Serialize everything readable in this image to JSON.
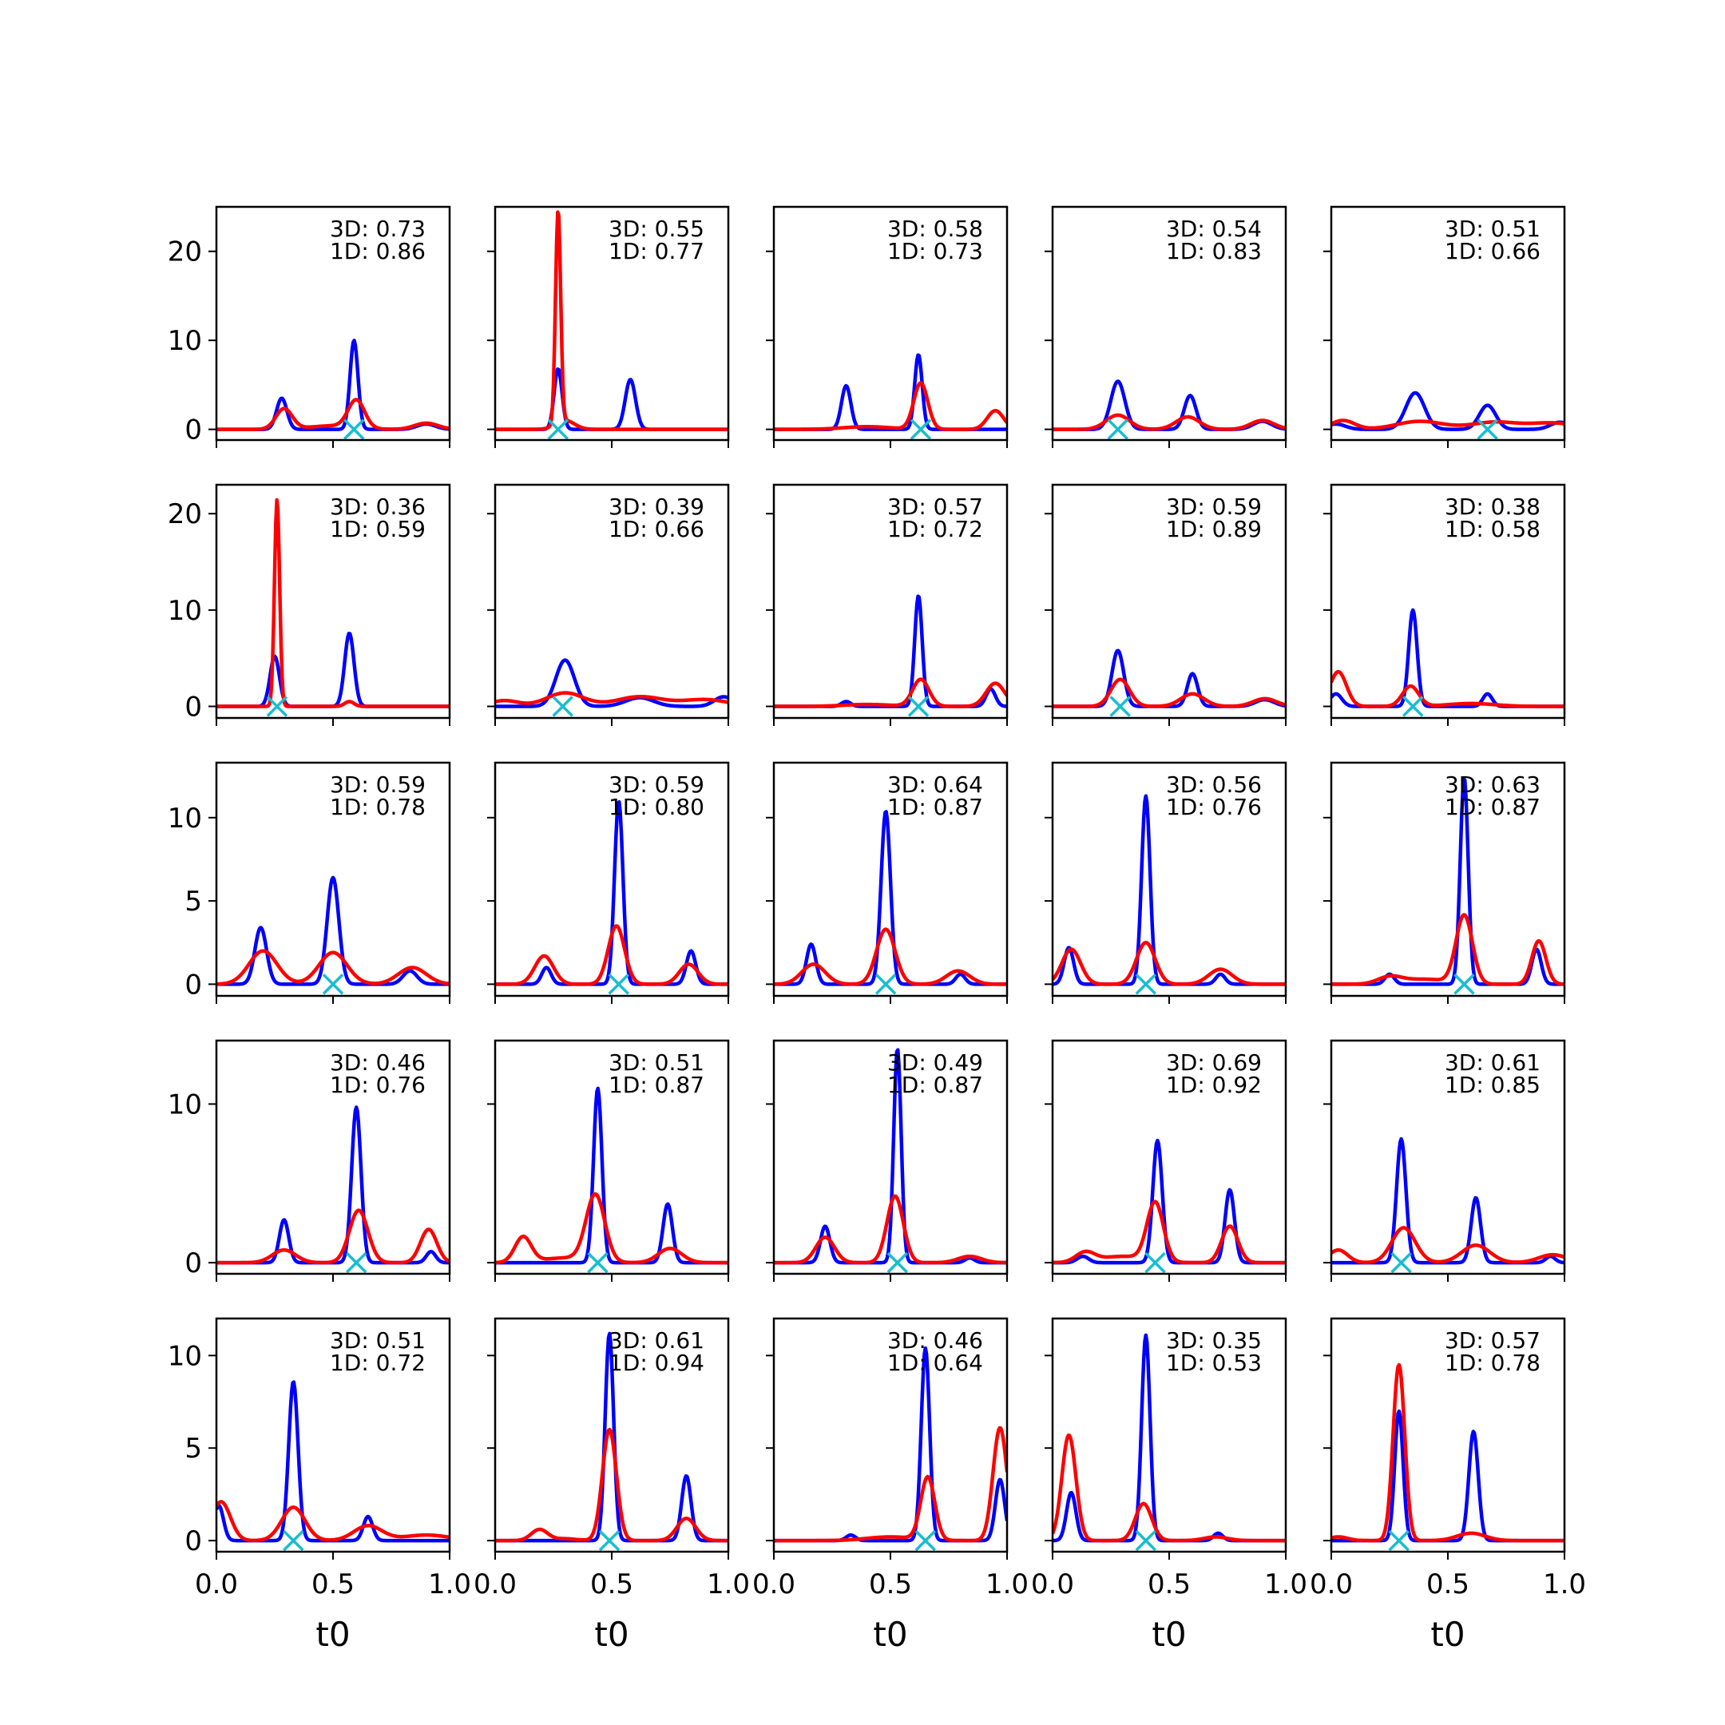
{
  "chart_data": {
    "type": "line",
    "layout": "5x5 grid of small multiples",
    "xlabel": "t0",
    "xlim": [
      0,
      1
    ],
    "xticks": [
      "0.0",
      "0.5",
      "1.0"
    ],
    "rows": [
      {
        "ylim": [
          -1.2,
          25
        ],
        "yticks": [
          0,
          10,
          20
        ]
      },
      {
        "ylim": [
          -1.2,
          23
        ],
        "yticks": [
          0,
          10,
          20
        ]
      },
      {
        "ylim": [
          -0.7,
          13.3
        ],
        "yticks": [
          0,
          5,
          10
        ]
      },
      {
        "ylim": [
          -0.7,
          14
        ],
        "yticks": [
          0,
          10
        ]
      },
      {
        "ylim": [
          -0.6,
          12
        ],
        "yticks": [
          0,
          5,
          10
        ]
      }
    ],
    "series_colors": {
      "blue": "#0000ff",
      "red": "#ff0000",
      "marker": "#17becf"
    },
    "panels": [
      {
        "ann": [
          "3D: 0.73",
          "1D: 0.86"
        ],
        "x_mark": 0.59,
        "blue": [
          [
            0.28,
            3.5,
            0.022
          ],
          [
            0.59,
            10.0,
            0.017
          ],
          [
            0.9,
            0.6,
            0.04
          ]
        ],
        "red": [
          [
            0.29,
            2.3,
            0.035
          ],
          [
            0.6,
            3.1,
            0.035
          ],
          [
            0.9,
            0.7,
            0.05
          ],
          [
            0.5,
            0.4,
            0.1
          ]
        ]
      },
      {
        "ann": [
          "3D: 0.55",
          "1D: 0.77"
        ],
        "x_mark": 0.27,
        "blue": [
          [
            0.27,
            6.8,
            0.017
          ],
          [
            0.58,
            5.6,
            0.022
          ]
        ],
        "red": [
          [
            0.27,
            24.0,
            0.011
          ],
          [
            0.3,
            1.0,
            0.04
          ]
        ]
      },
      {
        "ann": [
          "3D: 0.58",
          "1D: 0.73"
        ],
        "x_mark": 0.63,
        "blue": [
          [
            0.31,
            4.9,
            0.02
          ],
          [
            0.62,
            8.4,
            0.016
          ]
        ],
        "red": [
          [
            0.63,
            5.2,
            0.03
          ],
          [
            0.95,
            2.1,
            0.035
          ],
          [
            0.4,
            0.3,
            0.1
          ]
        ]
      },
      {
        "ann": [
          "3D: 0.54",
          "1D: 0.83"
        ],
        "x_mark": 0.28,
        "blue": [
          [
            0.28,
            5.4,
            0.03
          ],
          [
            0.59,
            3.8,
            0.025
          ],
          [
            0.9,
            0.9,
            0.04
          ]
        ],
        "red": [
          [
            0.28,
            1.6,
            0.05
          ],
          [
            0.58,
            1.4,
            0.05
          ],
          [
            0.9,
            1.0,
            0.05
          ]
        ]
      },
      {
        "ann": [
          "3D: 0.51",
          "1D: 0.66"
        ],
        "x_mark": 0.67,
        "blue": [
          [
            0.36,
            4.1,
            0.04
          ],
          [
            0.67,
            2.7,
            0.035
          ],
          [
            0.98,
            0.8,
            0.04
          ],
          [
            0.02,
            0.6,
            0.04
          ]
        ],
        "red": [
          [
            0.05,
            1.0,
            0.05
          ],
          [
            0.38,
            0.9,
            0.1
          ],
          [
            0.7,
            0.8,
            0.1
          ],
          [
            0.95,
            0.7,
            0.1
          ]
        ]
      },
      {
        "ann": [
          "3D: 0.36",
          "1D: 0.59"
        ],
        "x_mark": 0.26,
        "blue": [
          [
            0.25,
            5.2,
            0.02
          ],
          [
            0.57,
            7.6,
            0.02
          ]
        ],
        "red": [
          [
            0.26,
            21.5,
            0.011
          ],
          [
            0.57,
            0.5,
            0.02
          ]
        ]
      },
      {
        "ann": [
          "3D: 0.39",
          "1D: 0.66"
        ],
        "x_mark": 0.29,
        "blue": [
          [
            0.3,
            4.8,
            0.04
          ],
          [
            0.62,
            0.9,
            0.06
          ],
          [
            0.98,
            1.0,
            0.04
          ]
        ],
        "red": [
          [
            0.04,
            0.6,
            0.06
          ],
          [
            0.3,
            1.4,
            0.08
          ],
          [
            0.62,
            1.0,
            0.1
          ],
          [
            0.9,
            0.7,
            0.1
          ]
        ]
      },
      {
        "ann": [
          "3D: 0.57",
          "1D: 0.72"
        ],
        "x_mark": 0.62,
        "blue": [
          [
            0.31,
            0.5,
            0.02
          ],
          [
            0.62,
            11.5,
            0.016
          ],
          [
            0.93,
            1.8,
            0.02
          ]
        ],
        "red": [
          [
            0.63,
            2.8,
            0.035
          ],
          [
            0.95,
            2.4,
            0.04
          ],
          [
            0.4,
            0.2,
            0.1
          ]
        ]
      },
      {
        "ann": [
          "3D: 0.59",
          "1D: 0.89"
        ],
        "x_mark": 0.29,
        "blue": [
          [
            0.28,
            5.8,
            0.025
          ],
          [
            0.6,
            3.4,
            0.022
          ],
          [
            0.91,
            0.7,
            0.04
          ]
        ],
        "red": [
          [
            0.29,
            2.8,
            0.04
          ],
          [
            0.6,
            1.3,
            0.05
          ],
          [
            0.91,
            0.8,
            0.05
          ]
        ]
      },
      {
        "ann": [
          "3D: 0.38",
          "1D: 0.58"
        ],
        "x_mark": 0.35,
        "blue": [
          [
            0.02,
            1.3,
            0.025
          ],
          [
            0.35,
            10.0,
            0.018
          ],
          [
            0.67,
            1.3,
            0.02
          ]
        ],
        "red": [
          [
            0.03,
            3.6,
            0.035
          ],
          [
            0.34,
            2.1,
            0.035
          ],
          [
            0.6,
            0.3,
            0.1
          ]
        ]
      },
      {
        "ann": [
          "3D: 0.59",
          "1D: 0.78"
        ],
        "x_mark": 0.5,
        "blue": [
          [
            0.19,
            3.4,
            0.025
          ],
          [
            0.5,
            6.4,
            0.025
          ],
          [
            0.83,
            0.8,
            0.03
          ]
        ],
        "red": [
          [
            0.2,
            2.0,
            0.06
          ],
          [
            0.5,
            1.9,
            0.06
          ],
          [
            0.84,
            1.0,
            0.06
          ]
        ]
      },
      {
        "ann": [
          "3D: 0.59",
          "1D: 0.80"
        ],
        "x_mark": 0.53,
        "blue": [
          [
            0.22,
            1.0,
            0.02
          ],
          [
            0.53,
            11.0,
            0.018
          ],
          [
            0.84,
            2.0,
            0.02
          ]
        ],
        "red": [
          [
            0.21,
            1.7,
            0.04
          ],
          [
            0.52,
            3.5,
            0.035
          ],
          [
            0.83,
            1.2,
            0.04
          ]
        ]
      },
      {
        "ann": [
          "3D: 0.64",
          "1D: 0.87"
        ],
        "x_mark": 0.48,
        "blue": [
          [
            0.16,
            2.4,
            0.02
          ],
          [
            0.48,
            10.4,
            0.02
          ],
          [
            0.8,
            0.6,
            0.02
          ]
        ],
        "red": [
          [
            0.17,
            1.2,
            0.05
          ],
          [
            0.48,
            3.3,
            0.04
          ],
          [
            0.79,
            0.8,
            0.05
          ]
        ]
      },
      {
        "ann": [
          "3D: 0.56",
          "1D: 0.76"
        ],
        "x_mark": 0.4,
        "blue": [
          [
            0.07,
            2.2,
            0.02
          ],
          [
            0.4,
            11.3,
            0.018
          ],
          [
            0.72,
            0.6,
            0.02
          ]
        ],
        "red": [
          [
            0.08,
            2.1,
            0.04
          ],
          [
            0.4,
            2.5,
            0.04
          ],
          [
            0.72,
            0.9,
            0.05
          ]
        ]
      },
      {
        "ann": [
          "3D: 0.63",
          "1D: 0.87"
        ],
        "x_mark": 0.57,
        "blue": [
          [
            0.25,
            0.6,
            0.02
          ],
          [
            0.57,
            12.4,
            0.017
          ],
          [
            0.88,
            2.1,
            0.02
          ]
        ],
        "red": [
          [
            0.25,
            0.4,
            0.05
          ],
          [
            0.57,
            4.1,
            0.035
          ],
          [
            0.89,
            2.6,
            0.03
          ],
          [
            0.4,
            0.3,
            0.1
          ]
        ]
      },
      {
        "ann": [
          "3D: 0.46",
          "1D: 0.76"
        ],
        "x_mark": 0.6,
        "blue": [
          [
            0.29,
            2.7,
            0.02
          ],
          [
            0.6,
            9.8,
            0.02
          ],
          [
            0.92,
            0.7,
            0.02
          ]
        ],
        "red": [
          [
            0.29,
            0.8,
            0.05
          ],
          [
            0.61,
            3.3,
            0.04
          ],
          [
            0.91,
            2.1,
            0.035
          ]
        ]
      },
      {
        "ann": [
          "3D: 0.51",
          "1D: 0.87"
        ],
        "x_mark": 0.44,
        "blue": [
          [
            0.44,
            11.0,
            0.018
          ],
          [
            0.74,
            3.7,
            0.02
          ]
        ],
        "red": [
          [
            0.12,
            1.6,
            0.035
          ],
          [
            0.43,
            4.2,
            0.04
          ],
          [
            0.75,
            0.9,
            0.05
          ],
          [
            0.3,
            0.3,
            0.1
          ]
        ]
      },
      {
        "ann": [
          "3D: 0.49",
          "1D: 0.87"
        ],
        "x_mark": 0.53,
        "blue": [
          [
            0.22,
            2.3,
            0.02
          ],
          [
            0.53,
            13.5,
            0.016
          ],
          [
            0.84,
            0.3,
            0.02
          ]
        ],
        "red": [
          [
            0.22,
            1.6,
            0.04
          ],
          [
            0.52,
            4.2,
            0.035
          ],
          [
            0.84,
            0.4,
            0.05
          ]
        ]
      },
      {
        "ann": [
          "3D: 0.69",
          "1D: 0.92"
        ],
        "x_mark": 0.44,
        "blue": [
          [
            0.13,
            0.4,
            0.025
          ],
          [
            0.45,
            7.7,
            0.02
          ],
          [
            0.76,
            4.6,
            0.02
          ]
        ],
        "red": [
          [
            0.14,
            0.6,
            0.04
          ],
          [
            0.44,
            3.7,
            0.035
          ],
          [
            0.76,
            2.3,
            0.035
          ],
          [
            0.3,
            0.4,
            0.1
          ]
        ]
      },
      {
        "ann": [
          "3D: 0.61",
          "1D: 0.85"
        ],
        "x_mark": 0.3,
        "blue": [
          [
            0.3,
            7.8,
            0.02
          ],
          [
            0.62,
            4.1,
            0.02
          ],
          [
            0.94,
            0.4,
            0.02
          ]
        ],
        "red": [
          [
            0.03,
            0.8,
            0.04
          ],
          [
            0.31,
            2.2,
            0.05
          ],
          [
            0.62,
            1.1,
            0.06
          ],
          [
            0.95,
            0.5,
            0.06
          ]
        ]
      },
      {
        "ann": [
          "3D: 0.51",
          "1D: 0.72"
        ],
        "x_mark": 0.33,
        "blue": [
          [
            0.01,
            1.9,
            0.02
          ],
          [
            0.33,
            8.6,
            0.02
          ],
          [
            0.65,
            1.3,
            0.02
          ]
        ],
        "red": [
          [
            0.02,
            2.1,
            0.04
          ],
          [
            0.33,
            1.8,
            0.05
          ],
          [
            0.65,
            0.8,
            0.06
          ],
          [
            0.9,
            0.3,
            0.1
          ]
        ]
      },
      {
        "ann": [
          "3D: 0.61",
          "1D: 0.94"
        ],
        "x_mark": 0.49,
        "blue": [
          [
            0.49,
            11.2,
            0.018
          ],
          [
            0.82,
            3.5,
            0.02
          ]
        ],
        "red": [
          [
            0.19,
            0.6,
            0.035
          ],
          [
            0.49,
            6.0,
            0.03
          ],
          [
            0.82,
            1.2,
            0.04
          ],
          [
            0.3,
            0.1,
            0.05
          ]
        ]
      },
      {
        "ann": [
          "3D: 0.46",
          "1D: 0.64"
        ],
        "x_mark": 0.65,
        "blue": [
          [
            0.33,
            0.3,
            0.02
          ],
          [
            0.65,
            10.4,
            0.018
          ],
          [
            0.97,
            3.3,
            0.02
          ]
        ],
        "red": [
          [
            0.66,
            3.4,
            0.03
          ],
          [
            0.97,
            6.1,
            0.03
          ],
          [
            0.5,
            0.2,
            0.1
          ]
        ]
      },
      {
        "ann": [
          "3D: 0.35",
          "1D: 0.53"
        ],
        "x_mark": 0.4,
        "blue": [
          [
            0.08,
            2.6,
            0.02
          ],
          [
            0.4,
            11.1,
            0.018
          ],
          [
            0.71,
            0.4,
            0.02
          ]
        ],
        "red": [
          [
            0.07,
            5.7,
            0.03
          ],
          [
            0.39,
            2.0,
            0.035
          ],
          [
            0.7,
            0.2,
            0.05
          ]
        ]
      },
      {
        "ann": [
          "3D: 0.57",
          "1D: 0.78"
        ],
        "x_mark": 0.29,
        "blue": [
          [
            0.29,
            7.0,
            0.018
          ],
          [
            0.61,
            5.9,
            0.02
          ]
        ],
        "red": [
          [
            0.29,
            9.5,
            0.025
          ],
          [
            0.6,
            0.4,
            0.06
          ],
          [
            0.03,
            0.2,
            0.04
          ]
        ]
      }
    ]
  }
}
